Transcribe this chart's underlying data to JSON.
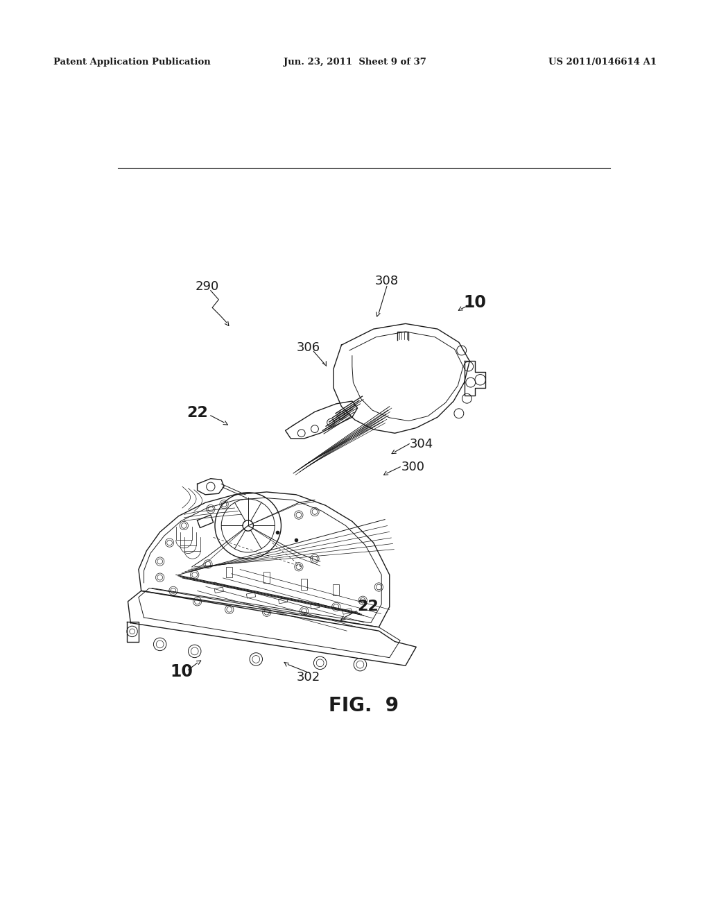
{
  "page_width": 10.24,
  "page_height": 13.2,
  "background_color": "#ffffff",
  "header_left": "Patent Application Publication",
  "header_center": "Jun. 23, 2011  Sheet 9 of 37",
  "header_right": "US 2011/0146614 A1",
  "figure_label": "FIG.  9",
  "header_fontsize": 9.5,
  "figure_label_fontsize": 20,
  "line_color": "#1a1a1a",
  "text_color": "#1a1a1a"
}
